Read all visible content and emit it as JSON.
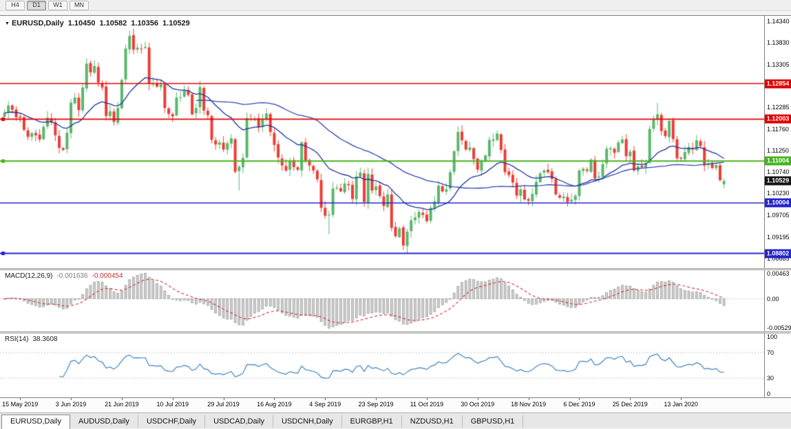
{
  "toolbar": {
    "buttons": [
      {
        "label": "H4",
        "active": false
      },
      {
        "label": "D1",
        "active": true
      },
      {
        "label": "W1",
        "active": false
      },
      {
        "label": "MN",
        "active": false
      }
    ]
  },
  "chart": {
    "title": {
      "symbol": "EURUSD,Daily",
      "open": "1.10450",
      "high": "1.10582",
      "low": "1.10356",
      "close": "1.10529"
    },
    "price_axis": {
      "ticks": [
        "1.14340",
        "1.13830",
        "1.13305",
        "1.12795",
        "1.12285",
        "1.11760",
        "1.11250",
        "1.10740",
        "1.10230",
        "1.09705",
        "1.09195",
        "1.08685"
      ],
      "tags": [
        {
          "label": "1.12854",
          "price": 1.12854,
          "color": "#e00000",
          "name": "resistance-tag-upper"
        },
        {
          "label": "1.12003",
          "price": 1.12003,
          "color": "#e00000",
          "name": "resistance-tag-lower"
        },
        {
          "label": "1.11004",
          "price": 1.11004,
          "color": "#46b41e",
          "name": "support-tag-green"
        },
        {
          "label": "1.10529",
          "price": 1.10529,
          "color": "#141414",
          "name": "current-price-tag"
        },
        {
          "label": "1.10004",
          "price": 1.10004,
          "color": "#2424cc",
          "name": "support-tag-blue-upper"
        },
        {
          "label": "1.08802",
          "price": 1.08802,
          "color": "#2424cc",
          "name": "support-tag-blue-lower"
        }
      ]
    },
    "levels": [
      {
        "price": 1.12854,
        "color": "#e00000",
        "width": 1.6,
        "handle": false
      },
      {
        "price": 1.12003,
        "color": "#e00000",
        "width": 1.6,
        "handle": true
      },
      {
        "price": 1.11004,
        "color": "#46b41e",
        "width": 2,
        "handle": true
      },
      {
        "price": 1.10004,
        "color": "#2424cc",
        "width": 1.6,
        "handle": false
      },
      {
        "price": 1.08802,
        "color": "#2424cc",
        "width": 2,
        "handle": true
      }
    ],
    "time_axis": [
      "15 May 2019",
      "3 Jun 2019",
      "21 Jun 2019",
      "10 Jul 2019",
      "29 Jul 2019",
      "16 Aug 2019",
      "4 Sep 2019",
      "23 Sep 2019",
      "11 Oct 2019",
      "30 Oct 2019",
      "18 Nov 2019",
      "6 Dec 2019",
      "25 Dec 2019",
      "13 Jan 2020"
    ],
    "chart_data": {
      "type": "candlestick",
      "symbol": "EURUSD",
      "timeframe": "Daily",
      "seed": 11,
      "bar_spacing": 5.68,
      "first_open": 1.1206,
      "y_range": {
        "top": 1.1447,
        "bottom": 1.0845
      },
      "ma_periods": [
        20,
        50
      ],
      "macd_params": [
        12,
        26,
        9
      ],
      "rsi_period": 14,
      "closes": [
        1.1215,
        1.1233,
        1.1223,
        1.1205,
        1.1204,
        1.1175,
        1.1158,
        1.1167,
        1.1162,
        1.1152,
        1.1182,
        1.1204,
        1.1193,
        1.1162,
        1.1132,
        1.1127,
        1.1168,
        1.124,
        1.1252,
        1.1222,
        1.1276,
        1.1333,
        1.1312,
        1.1327,
        1.1288,
        1.1276,
        1.1208,
        1.1219,
        1.1194,
        1.1227,
        1.1294,
        1.1369,
        1.1399,
        1.1366,
        1.1371,
        1.1368,
        1.1373,
        1.1285,
        1.1285,
        1.1278,
        1.1283,
        1.1227,
        1.1213,
        1.1207,
        1.1252,
        1.1253,
        1.127,
        1.1258,
        1.1212,
        1.1227,
        1.1277,
        1.1221,
        1.121,
        1.1151,
        1.114,
        1.1145,
        1.1128,
        1.1143,
        1.1155,
        1.1075,
        1.1087,
        1.1108,
        1.1203,
        1.12,
        1.1201,
        1.1181,
        1.12,
        1.1214,
        1.117,
        1.1139,
        1.1109,
        1.109,
        1.1078,
        1.11,
        1.1086,
        1.108,
        1.1145,
        1.1101,
        1.109,
        1.1078,
        1.1057,
        1.0989,
        1.097,
        1.0972,
        1.1035,
        1.1037,
        1.1028,
        1.1047,
        1.1043,
        1.101,
        1.1064,
        1.1073,
        1.1003,
        1.107,
        1.103,
        1.104,
        1.1017,
        1.0993,
        1.1021,
        1.0941,
        1.0921,
        1.094,
        1.0899,
        1.0932,
        1.0959,
        1.0966,
        1.0979,
        1.0972,
        1.0957,
        1.0989,
        1.1004,
        1.1042,
        1.1028,
        1.1033,
        1.1074,
        1.1124,
        1.117,
        1.115,
        1.1128,
        1.1133,
        1.1105,
        1.108,
        1.11,
        1.1114,
        1.1151,
        1.1152,
        1.1166,
        1.1127,
        1.1074,
        1.1067,
        1.1049,
        1.1018,
        1.1033,
        1.1009,
        1.1006,
        1.1022,
        1.1051,
        1.1071,
        1.1078,
        1.1074,
        1.1058,
        1.1021,
        1.1013,
        1.1016,
        1.1003,
        1.1008,
        1.1018,
        1.1078,
        1.1082,
        1.1077,
        1.1104,
        1.1059,
        1.1064,
        1.1093,
        1.113,
        1.1131,
        1.112,
        1.1145,
        1.1152,
        1.1112,
        1.1123,
        1.1078,
        1.1088,
        1.1086,
        1.1096,
        1.1177,
        1.1199,
        1.1212,
        1.1172,
        1.116,
        1.1196,
        1.1153,
        1.1107,
        1.1106,
        1.1122,
        1.1134,
        1.1128,
        1.115,
        1.1136,
        1.109,
        1.1095,
        1.1084,
        1.1091,
        1.1055,
        1.10529
      ],
      "extremes": [
        {
          "i": 32,
          "high": 1.1412
        },
        {
          "i": 60,
          "low": 1.103
        },
        {
          "i": 83,
          "low": 1.0926
        },
        {
          "i": 103,
          "low": 1.0879
        },
        {
          "i": 167,
          "high": 1.1239
        }
      ],
      "last_candle": {
        "open": 1.1045,
        "high": 1.10582,
        "low": 1.10356,
        "close": 1.10529
      }
    }
  },
  "macd": {
    "name": "MACD(12,26,9)",
    "value": "-0.001636",
    "signal": "-0.000454",
    "axis": [
      "0.00463",
      "0.00",
      "-0.00529"
    ],
    "range": {
      "max": 0.00463,
      "min": -0.00529
    }
  },
  "rsi": {
    "name": "RSI(14)",
    "value": "38.3608",
    "axis": [
      "100",
      "70",
      "30",
      "0"
    ],
    "levels": [
      70,
      30
    ]
  },
  "tabs": [
    {
      "label": "EURUSD,Daily",
      "active": true
    },
    {
      "label": "AUDUSD,Daily",
      "active": false
    },
    {
      "label": "USDCHF,Daily",
      "active": false
    },
    {
      "label": "USDCAD,Daily",
      "active": false
    },
    {
      "label": "USDCNH,Daily",
      "active": false
    },
    {
      "label": "EURGBP,H1",
      "active": false
    },
    {
      "label": "NZDUSD,H1",
      "active": false
    },
    {
      "label": "GBPUSD,H1",
      "active": false
    }
  ],
  "palette": {
    "bull": "#58b86b",
    "bear": "#ef3c34",
    "ma1": "#1a2f9c",
    "ma2": "#2c41b5",
    "macd_hist": "#cccccc",
    "macd_hist_border": "#8f8f8f",
    "macd_signal": "#cf2f2f",
    "rsi": "#4080c0"
  }
}
